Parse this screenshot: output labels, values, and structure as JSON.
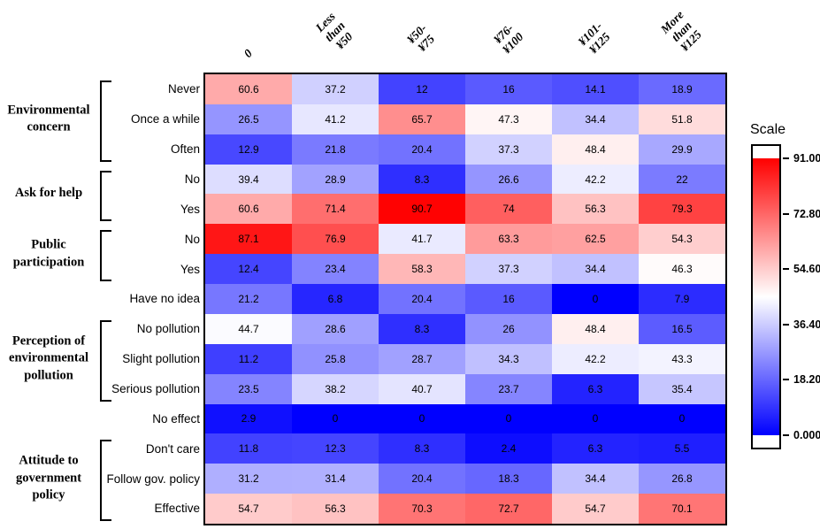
{
  "chart_data": {
    "type": "heatmap",
    "title": "",
    "columns": [
      "0",
      "Less than\n¥50",
      "¥50-¥75",
      "¥76-¥100",
      "¥101-¥125",
      "More than\n¥125"
    ],
    "rows": [
      "Never",
      "Once a while",
      "Often",
      "No",
      "Yes",
      "No",
      "Yes",
      "Have no idea",
      "No pollution",
      "Slight pollution",
      "Serious pollution",
      "No effect",
      "Don't care",
      "Follow gov. policy",
      "Effective"
    ],
    "row_groups": [
      {
        "label": "Environmental\nconcern",
        "start": 0,
        "end": 2
      },
      {
        "label": "Ask for help",
        "start": 3,
        "end": 4
      },
      {
        "label": "Public\nparticipation",
        "start": 5,
        "end": 6
      },
      {
        "label": "Perception of\nenvironmental\npollution",
        "start": 8,
        "end": 10
      },
      {
        "label": "Attitude to\ngovernment\npolicy",
        "start": 12,
        "end": 14
      }
    ],
    "values": [
      [
        60.6,
        37.2,
        12,
        16,
        14.1,
        18.9
      ],
      [
        26.5,
        41.2,
        65.7,
        47.3,
        34.4,
        51.8
      ],
      [
        12.9,
        21.8,
        20.4,
        37.3,
        48.4,
        29.9
      ],
      [
        39.4,
        28.9,
        8.3,
        26.6,
        42.2,
        22
      ],
      [
        60.6,
        71.4,
        90.7,
        74,
        56.3,
        79.3
      ],
      [
        87.1,
        76.9,
        41.7,
        63.3,
        62.5,
        54.3
      ],
      [
        12.4,
        23.4,
        58.3,
        37.3,
        34.4,
        46.3
      ],
      [
        21.2,
        6.8,
        20.4,
        16,
        0,
        7.9
      ],
      [
        44.7,
        28.6,
        8.3,
        26,
        48.4,
        16.5
      ],
      [
        11.2,
        25.8,
        28.7,
        34.3,
        42.2,
        43.3
      ],
      [
        23.5,
        38.2,
        40.7,
        23.7,
        6.3,
        35.4
      ],
      [
        2.9,
        0,
        0,
        0,
        0,
        0
      ],
      [
        11.8,
        12.3,
        8.3,
        2.4,
        6.3,
        5.5
      ],
      [
        31.2,
        31.4,
        20.4,
        18.3,
        34.4,
        26.8
      ],
      [
        54.7,
        56.3,
        70.3,
        72.7,
        54.7,
        70.1
      ]
    ],
    "colormap": {
      "low_color": "#0000FF",
      "mid_color": "#FFFFFF",
      "high_color": "#FF0000",
      "min": 0,
      "midpoint": 45.5,
      "max": 91
    },
    "legend": {
      "title": "Scale",
      "position": "right",
      "tick_labels": [
        "91.00",
        "72.80",
        "54.60",
        "36.40",
        "18.20",
        "0.000"
      ],
      "tick_values": [
        91.0,
        72.8,
        54.6,
        36.4,
        18.2,
        0.0
      ]
    },
    "grid": false
  }
}
